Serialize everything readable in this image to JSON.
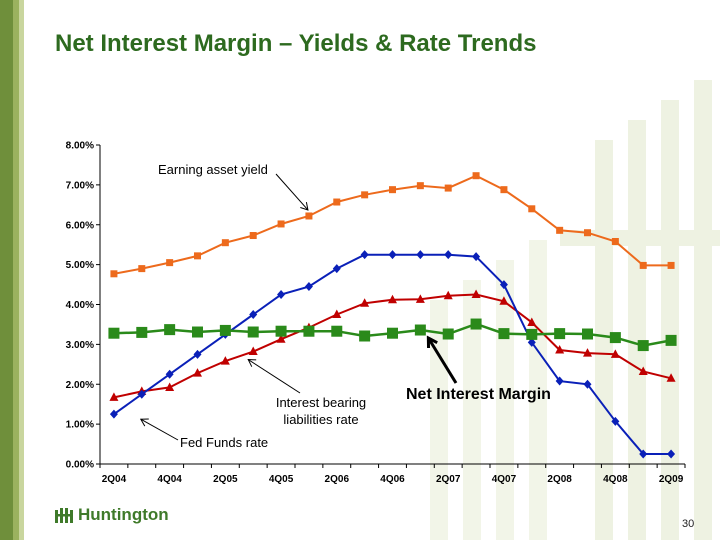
{
  "title": "Net Interest Margin – Yields & Rate Trends",
  "logo_text": "Huntington",
  "page_number": "30",
  "chart_data": {
    "type": "line",
    "x": [
      "2Q04",
      "3Q04",
      "4Q04",
      "1Q05",
      "2Q05",
      "3Q05",
      "4Q05",
      "1Q06",
      "2Q06",
      "3Q06",
      "4Q06",
      "1Q07",
      "2Q07",
      "3Q07",
      "4Q07",
      "1Q08",
      "2Q08",
      "3Q08",
      "4Q08",
      "1Q09",
      "2Q09"
    ],
    "x_tick_labels": [
      "2Q04",
      "4Q04",
      "2Q05",
      "4Q05",
      "2Q06",
      "4Q06",
      "2Q07",
      "4Q07",
      "2Q08",
      "4Q08",
      "2Q09"
    ],
    "ylim": [
      0,
      8
    ],
    "y_ticks": [
      "0.00%",
      "1.00%",
      "2.00%",
      "3.00%",
      "4.00%",
      "5.00%",
      "6.00%",
      "7.00%",
      "8.00%"
    ],
    "series": [
      {
        "name": "Earning asset yield",
        "color": "#ed6a1c",
        "marker": "square",
        "values": [
          4.77,
          4.9,
          5.05,
          5.22,
          5.55,
          5.73,
          6.02,
          6.22,
          6.57,
          6.75,
          6.88,
          6.98,
          6.92,
          7.23,
          6.88,
          6.4,
          5.86,
          5.8,
          5.58,
          4.98,
          4.98
        ]
      },
      {
        "name": "Interest bearing liabilities rate",
        "color": "#c00000",
        "marker": "triangle",
        "values": [
          1.67,
          1.82,
          1.92,
          2.28,
          2.58,
          2.82,
          3.13,
          3.42,
          3.75,
          4.03,
          4.12,
          4.13,
          4.22,
          4.25,
          4.08,
          3.55,
          2.86,
          2.78,
          2.75,
          2.32,
          2.15
        ]
      },
      {
        "name": "Fed Funds rate",
        "color": "#0a20b8",
        "marker": "diamond",
        "values": [
          1.25,
          1.75,
          2.25,
          2.75,
          3.25,
          3.75,
          4.25,
          4.45,
          4.9,
          5.25,
          5.25,
          5.25,
          5.25,
          5.2,
          4.5,
          3.05,
          2.08,
          2.0,
          1.07,
          0.25,
          0.25
        ]
      },
      {
        "name": "Net Interest Margin",
        "color": "#2a8a1a",
        "marker": "square-large",
        "values": [
          3.28,
          3.3,
          3.37,
          3.31,
          3.35,
          3.31,
          3.33,
          3.33,
          3.33,
          3.21,
          3.28,
          3.36,
          3.26,
          3.51,
          3.27,
          3.25,
          3.27,
          3.26,
          3.17,
          2.97,
          3.1
        ]
      }
    ],
    "annotations": [
      {
        "text": "Earning asset yield",
        "series": 0,
        "point_index": 7
      },
      {
        "text_lines": [
          "Interest bearing",
          "liabilities rate"
        ],
        "series": 1,
        "point_index": 5
      },
      {
        "text": "Fed Funds rate",
        "series": 2,
        "point_index": 1
      },
      {
        "text": "Net Interest Margin",
        "series": 3,
        "point_index": 11,
        "bold": true
      }
    ],
    "grid": false,
    "legend": "none"
  }
}
